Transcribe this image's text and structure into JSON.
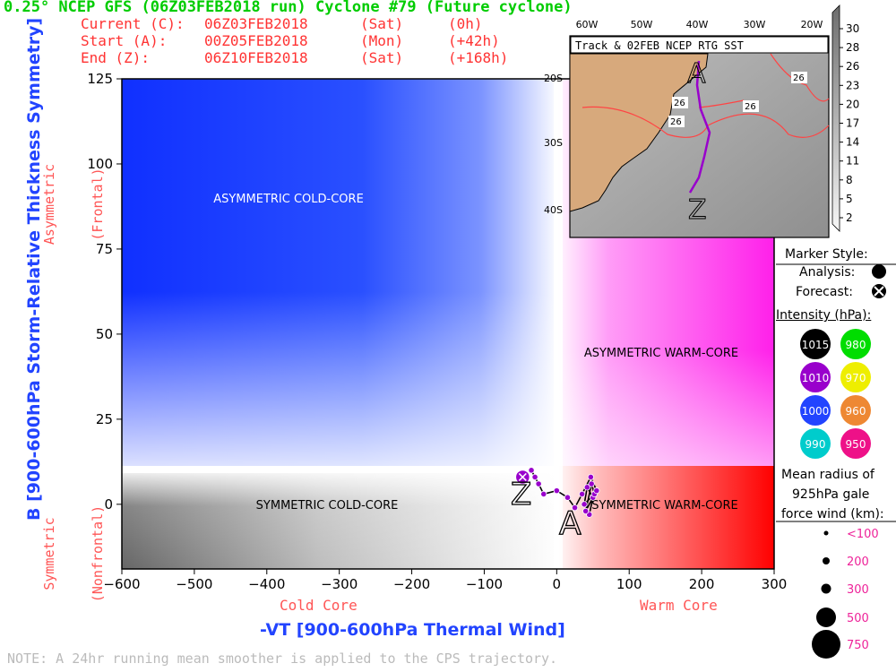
{
  "header": {
    "title": "0.25° NCEP GFS (06Z03FEB2018 run) Cyclone #79 (Future cyclone)",
    "rows": [
      {
        "label": "Current (C):",
        "value": "06Z03FEB2018",
        "day": "(Sat)",
        "offset": "(0h)"
      },
      {
        "label": "Start (A):",
        "value": "00Z05FEB2018",
        "day": "(Mon)",
        "offset": "(+42h)"
      },
      {
        "label": "End (Z):",
        "value": "06Z10FEB2018",
        "day": "(Sat)",
        "offset": "(+168h)"
      }
    ]
  },
  "axes": {
    "ylabel": "B [900-600hPa Storm-Relative Thickness Symmetry]",
    "xlabel": "-VT [900-600hPa Thermal Wind]",
    "y_side_top": [
      "Asymmetric",
      "(Frontal)"
    ],
    "y_side_bottom": [
      "Symmetric",
      "(Nonfrontal)"
    ],
    "x_left_note": "Cold Core",
    "x_right_note": "Warm Core"
  },
  "quadrants": {
    "asym_cold": "ASYMMETRIC COLD-CORE",
    "asym_warm": "ASYMMETRIC WARM-CORE",
    "sym_cold": "SYMMETRIC COLD-CORE",
    "sym_warm": "SYMMETRIC WARM-CORE"
  },
  "note": "NOTE: A 24hr running mean smoother is applied to the CPS trajectory.",
  "inset": {
    "title": "Track & 02FEB NCEP RTG SST",
    "lon_labels": [
      "60W",
      "50W",
      "40W",
      "30W",
      "20W"
    ],
    "lat_labels": [
      "20S",
      "30S",
      "40S"
    ],
    "isotherm_labels": [
      "26",
      "26",
      "26",
      "26"
    ],
    "colorbar": [
      "30",
      "28",
      "26",
      "23",
      "20",
      "17",
      "14",
      "11",
      "8",
      "5",
      "2"
    ],
    "start_marker": "A",
    "end_marker": "Z"
  },
  "legend": {
    "marker_style_title": "Marker Style:",
    "analysis": "Analysis:",
    "forecast": "Forecast:",
    "intensity_title": "Intensity (hPa):",
    "intensity": [
      {
        "value": "1015",
        "color": "#000000"
      },
      {
        "value": "980",
        "color": "#00dd00"
      },
      {
        "value": "1010",
        "color": "#9900cc"
      },
      {
        "value": "970",
        "color": "#eeee00"
      },
      {
        "value": "1000",
        "color": "#2244ff"
      },
      {
        "value": "960",
        "color": "#ee8833"
      },
      {
        "value": "990",
        "color": "#00cccc"
      },
      {
        "value": "950",
        "color": "#ee1188"
      }
    ],
    "radius_title": [
      "Mean radius of",
      "925hPa gale",
      "force wind (km):"
    ],
    "radius": [
      "<100",
      "200",
      "300",
      "500",
      "750"
    ]
  },
  "chart_data": {
    "type": "scatter",
    "title": "0.25° NCEP GFS (06Z03FEB2018 run) Cyclone #79 (Future cyclone)",
    "xlabel": "-VT [900-600hPa Thermal Wind]",
    "ylabel": "B [900-600hPa Storm-Relative Thickness Symmetry]",
    "xlim": [
      -600,
      300
    ],
    "ylim": [
      -19,
      125
    ],
    "xticks": [
      -600,
      -500,
      -400,
      -300,
      -200,
      -100,
      0,
      100,
      200,
      300
    ],
    "yticks": [
      0,
      25,
      50,
      75,
      100,
      125
    ],
    "series": [
      {
        "color": "#9900cc",
        "x": [
          45,
          50,
          42,
          38,
          52,
          48,
          40,
          55,
          47,
          35,
          25,
          15,
          0,
          -18,
          -25,
          -30,
          -35,
          -42,
          -47
        ],
        "y": [
          -3,
          2,
          5,
          0,
          3,
          6,
          -2,
          4,
          8,
          3,
          -1,
          2,
          4,
          3,
          6,
          8,
          10,
          9,
          8
        ]
      }
    ],
    "grid": false,
    "legend": "right"
  }
}
